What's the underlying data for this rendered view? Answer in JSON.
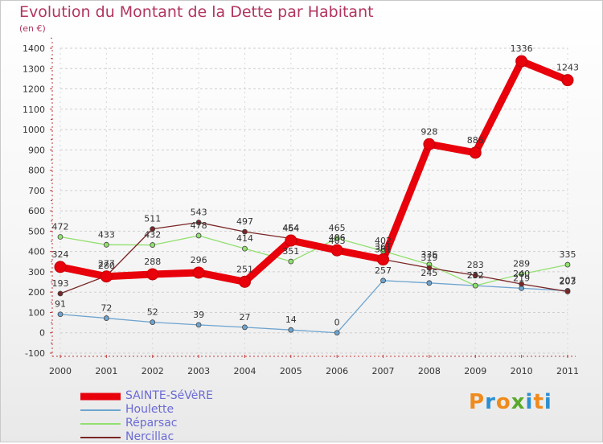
{
  "title": "Evolution du Montant de la Dette par Habitant",
  "subtitle": "(en €)",
  "brand": {
    "letters": [
      "P",
      "r",
      "o",
      "x",
      "i",
      "t",
      "i"
    ],
    "colors": [
      "#f08a1c",
      "#2a8fd1",
      "#f08a1c",
      "#5aaa2a",
      "#2a8fd1",
      "#f08a1c",
      "#2a8fd1"
    ]
  },
  "chart_data": {
    "type": "line",
    "title": "Evolution du Montant de la Dette par Habitant",
    "ylabel": "(en €)",
    "xlabel": "",
    "x": [
      "2000",
      "2001",
      "2002",
      "2003",
      "2004",
      "2005",
      "2006",
      "2007",
      "2008",
      "2009",
      "2010",
      "2011"
    ],
    "ylim": [
      -100,
      1400
    ],
    "yticks": [
      -100,
      0,
      100,
      200,
      300,
      400,
      500,
      600,
      700,
      800,
      900,
      1000,
      1100,
      1200,
      1300,
      1400
    ],
    "grid": "horizontal dashed",
    "legend_position": "bottom-left",
    "series": [
      {
        "name": "SAINTE-SéVèRE",
        "color": "#e8000b",
        "width": 9,
        "marker": 7,
        "values": [
          324,
          277,
          288,
          296,
          251,
          454,
          406,
          361,
          928,
          886,
          1336,
          1243
        ],
        "labels": [
          "324",
          "277",
          "288",
          "296",
          "251",
          "454",
          "406",
          "361",
          "928",
          "886",
          "1336",
          "1243"
        ]
      },
      {
        "name": "Houlette",
        "color": "#6ea4cf",
        "width": 1.3,
        "marker": 3,
        "values": [
          91,
          72,
          52,
          39,
          27,
          14,
          0,
          257,
          245,
          232,
          219,
          207
        ],
        "labels": [
          "91",
          "72",
          "52",
          "39",
          "27",
          "14",
          "0",
          "257",
          "245",
          "232",
          "219",
          "207"
        ]
      },
      {
        "name": "Réparsac",
        "color": "#92e06f",
        "width": 1.3,
        "marker": 3,
        "values": [
          472,
          433,
          432,
          478,
          414,
          351,
          465,
          402,
          336,
          232,
          289,
          335
        ],
        "labels": [
          "472",
          "433",
          "432",
          "478",
          "414",
          "351",
          "465",
          "402",
          "336",
          "232",
          "289",
          "335"
        ]
      },
      {
        "name": "Nercillac",
        "color": "#7a2626",
        "width": 1.3,
        "marker": 3,
        "values": [
          193,
          280,
          511,
          543,
          497,
          464,
          403,
          361,
          319,
          283,
          240,
          203
        ],
        "labels": [
          "193",
          "280",
          "511",
          "543",
          "497",
          "464",
          "403",
          "361",
          "319",
          "283",
          "240",
          "203"
        ]
      }
    ]
  }
}
